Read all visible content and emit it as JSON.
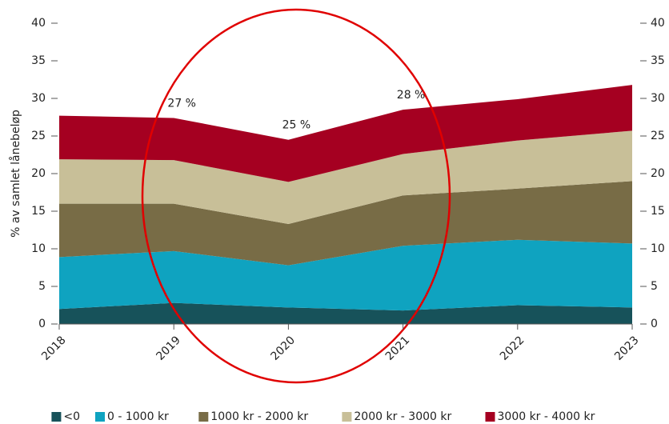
{
  "chart_data": {
    "type": "stacked_area",
    "y_label": "% av samlet lånebeløp",
    "categories": [
      "2018",
      "2019",
      "2020",
      "2021",
      "2022",
      "2023"
    ],
    "series": [
      {
        "name": "<0",
        "color": "#17525a",
        "values": [
          2.0,
          2.8,
          2.2,
          1.8,
          2.5,
          2.2
        ]
      },
      {
        "name": "0 - 1000 kr",
        "color": "#0fa3c0",
        "values": [
          6.9,
          6.9,
          5.6,
          8.6,
          8.7,
          8.5
        ]
      },
      {
        "name": "1000 kr - 2000 kr",
        "color": "#786c46",
        "values": [
          7.1,
          6.3,
          5.5,
          6.7,
          6.8,
          8.3
        ]
      },
      {
        "name": "2000 kr - 3000 kr",
        "color": "#c8bf98",
        "values": [
          5.9,
          5.8,
          5.6,
          5.5,
          6.4,
          6.7
        ]
      },
      {
        "name": "3000 kr - 4000 kr",
        "color": "#a50021",
        "values": [
          5.8,
          5.6,
          5.6,
          5.9,
          5.5,
          6.1
        ]
      }
    ],
    "annotations": [
      {
        "text": "27 %",
        "x": "2019"
      },
      {
        "text": "25 %",
        "x": "2020"
      },
      {
        "text": "28 %",
        "x": "2021"
      }
    ],
    "ylim": [
      0,
      40
    ],
    "yticks": [
      0,
      5,
      10,
      15,
      20,
      25,
      30,
      35,
      40
    ],
    "legend": "bottom"
  }
}
